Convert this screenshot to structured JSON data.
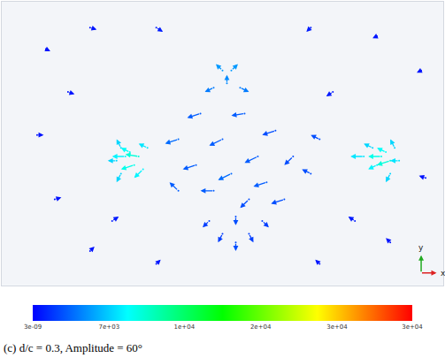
{
  "chart_data": {
    "type": "vector_field",
    "caption": "(c) d/c = 0.3, Amplitude = 60°",
    "tick_labels": false,
    "xlim": [
      0,
      100
    ],
    "ylim": [
      0,
      66
    ],
    "triad_labels": {
      "x": "x",
      "y": "y"
    },
    "color_range": [
      3e-09,
      33300
    ],
    "color_ticks": [
      {
        "value": 3e-09,
        "label": "3e-09"
      },
      {
        "value": 6700,
        "label": "7e+03"
      },
      {
        "value": 13300,
        "label": "1e+04"
      },
      {
        "value": 20000,
        "label": "2e+04"
      },
      {
        "value": 26700,
        "label": "3e+04"
      },
      {
        "value": 33300,
        "label": "3e+04"
      }
    ],
    "x": [
      45,
      55,
      62,
      40,
      50,
      58,
      66,
      44,
      52,
      60,
      70,
      48,
      40,
      56,
      64,
      72,
      50,
      52,
      51,
      48,
      54,
      28,
      30,
      29,
      31,
      26,
      32,
      33,
      27,
      27,
      86,
      88,
      87,
      85,
      90,
      84,
      89,
      88,
      82,
      53,
      50,
      56,
      47,
      59,
      53,
      10,
      20,
      35,
      70,
      85,
      95,
      8,
      12,
      20,
      35,
      72,
      88,
      96,
      15,
      75,
      80,
      25
    ],
    "y": [
      40,
      40,
      36,
      34,
      34,
      30,
      30,
      28,
      26,
      24,
      26,
      22,
      22,
      20,
      20,
      34,
      50,
      50,
      47,
      46,
      46,
      30,
      28,
      31,
      30,
      29,
      27,
      32,
      32,
      26,
      30,
      29,
      31,
      28,
      29,
      32,
      32,
      26,
      30,
      10,
      12,
      12,
      15,
      15,
      16,
      55,
      60,
      60,
      60,
      58,
      50,
      35,
      20,
      8,
      5,
      5,
      10,
      25,
      45,
      45,
      15,
      15
    ],
    "u": [
      -3,
      -3,
      -3,
      -3,
      -3,
      -3,
      -2,
      -3,
      -3,
      -3,
      -2,
      -3,
      -2,
      -2,
      -3,
      -2,
      -1.5,
      1.5,
      0,
      -2,
      2,
      -3,
      -3,
      -2,
      -3,
      -2,
      -2,
      -2,
      -1,
      -1,
      -3,
      -3,
      -2,
      -2,
      -2,
      -2,
      -1,
      -1,
      -3,
      0,
      -1,
      1,
      -1.5,
      1.5,
      0,
      1,
      1.5,
      1.5,
      -1,
      -1,
      -1,
      1.5,
      1.5,
      1,
      1,
      -1,
      -1,
      -1.5,
      1.5,
      -1.5,
      -1.5,
      1.5
    ],
    "v": [
      -1,
      -0.5,
      -1,
      -1,
      -1.5,
      -1.5,
      -2,
      -1,
      -1.5,
      -1,
      1,
      0,
      2,
      -2,
      -1,
      1,
      1.5,
      1.5,
      2,
      -1,
      -1,
      0,
      -1,
      1,
      0.5,
      0,
      -2,
      1,
      2,
      -2,
      0,
      -1,
      1,
      -1,
      0,
      1,
      2,
      -2,
      0,
      -2,
      -2,
      -2,
      -1.5,
      -1.5,
      -2,
      -0.5,
      -0.5,
      -1,
      -1,
      -0.5,
      -0.5,
      0,
      0.5,
      1,
      1,
      1,
      1,
      0.5,
      -0.5,
      -1,
      1,
      1
    ],
    "magnitude": [
      3000,
      3000,
      2500,
      3500,
      3000,
      3000,
      2500,
      3000,
      3500,
      3000,
      2500,
      3000,
      3000,
      2500,
      2500,
      2500,
      5000,
      5000,
      4500,
      4000,
      4000,
      8000,
      9000,
      8500,
      9500,
      7000,
      8000,
      7500,
      7000,
      7000,
      9000,
      9500,
      8500,
      8000,
      7500,
      7000,
      7000,
      7000,
      7500,
      2500,
      2000,
      2000,
      2000,
      2000,
      2500,
      600,
      700,
      900,
      900,
      700,
      600,
      600,
      600,
      600,
      700,
      700,
      600,
      600,
      700,
      800,
      800,
      800
    ]
  }
}
